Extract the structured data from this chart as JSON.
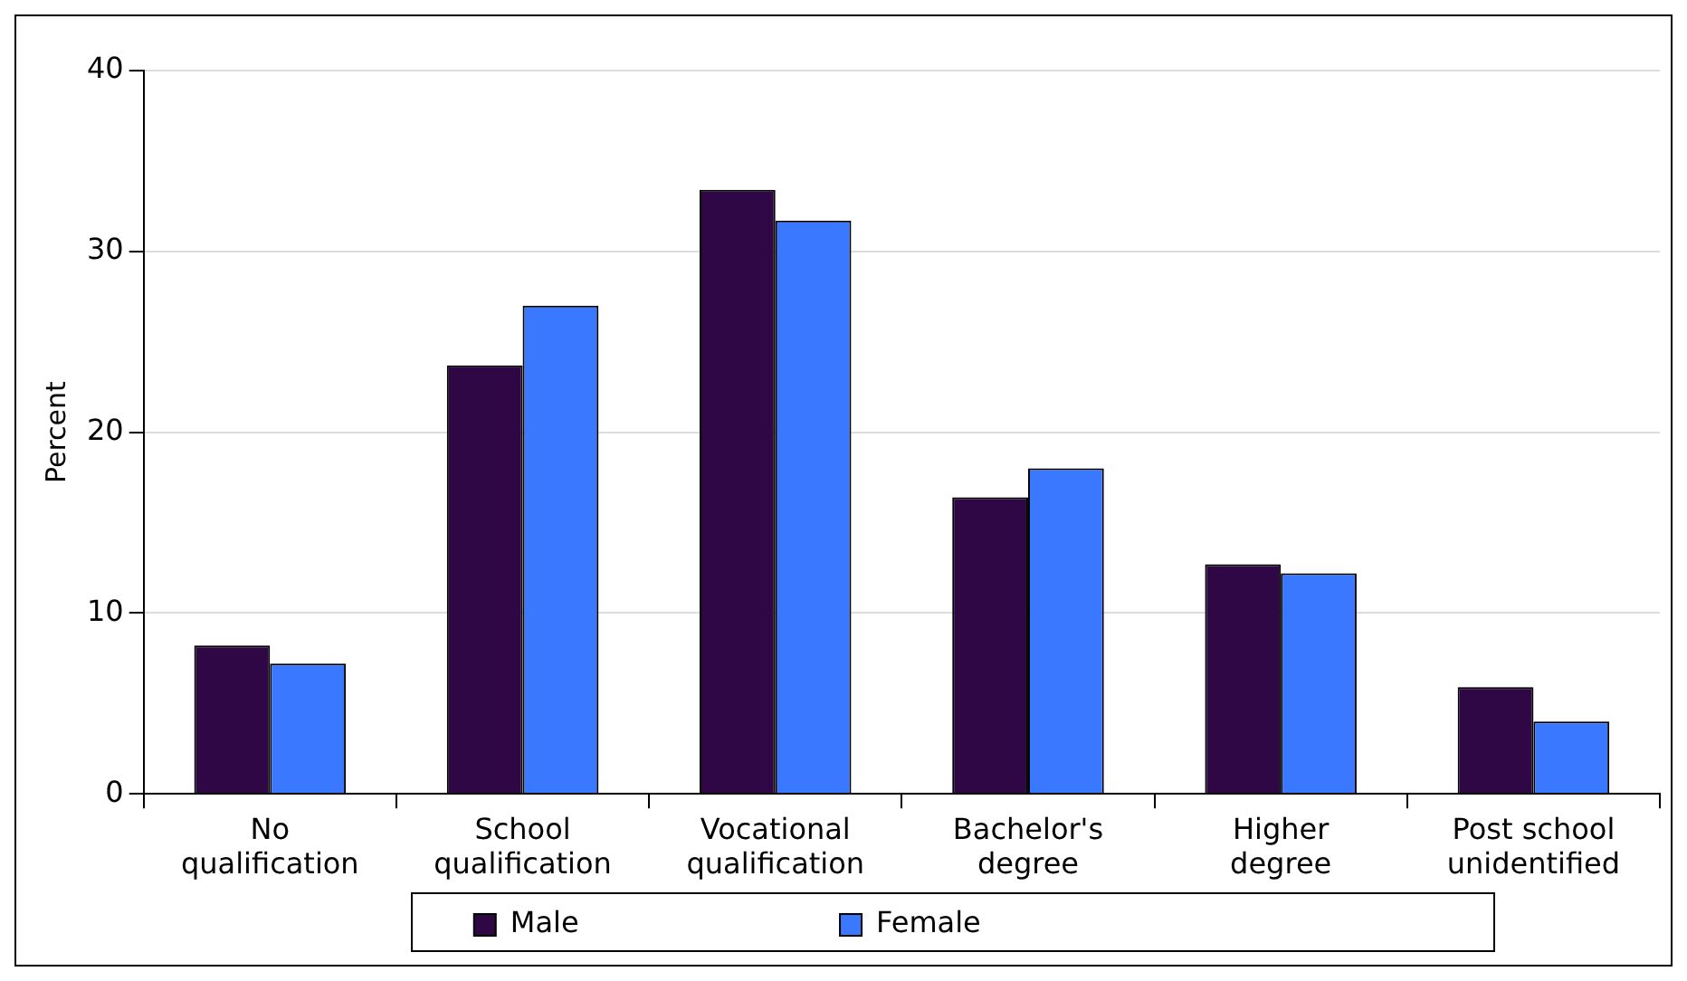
{
  "chart_data": {
    "type": "bar",
    "ylabel": "Percent",
    "categories": [
      "No qualification",
      "School qualification",
      "Vocational qualification",
      "Bachelor's degree",
      "Higher degree",
      "Post school unidentified"
    ],
    "series": [
      {
        "name": "Male",
        "color": "#2e0744",
        "values": [
          8.2,
          23.7,
          33.4,
          16.4,
          12.7,
          5.9
        ]
      },
      {
        "name": "Female",
        "color": "#3a78ff",
        "values": [
          7.2,
          27.0,
          31.7,
          18.0,
          12.2,
          4.0
        ]
      }
    ],
    "ylim": [
      0,
      40
    ],
    "yticks": [
      0,
      10,
      20,
      30,
      40
    ],
    "grid": "y",
    "legend": "bottom"
  }
}
